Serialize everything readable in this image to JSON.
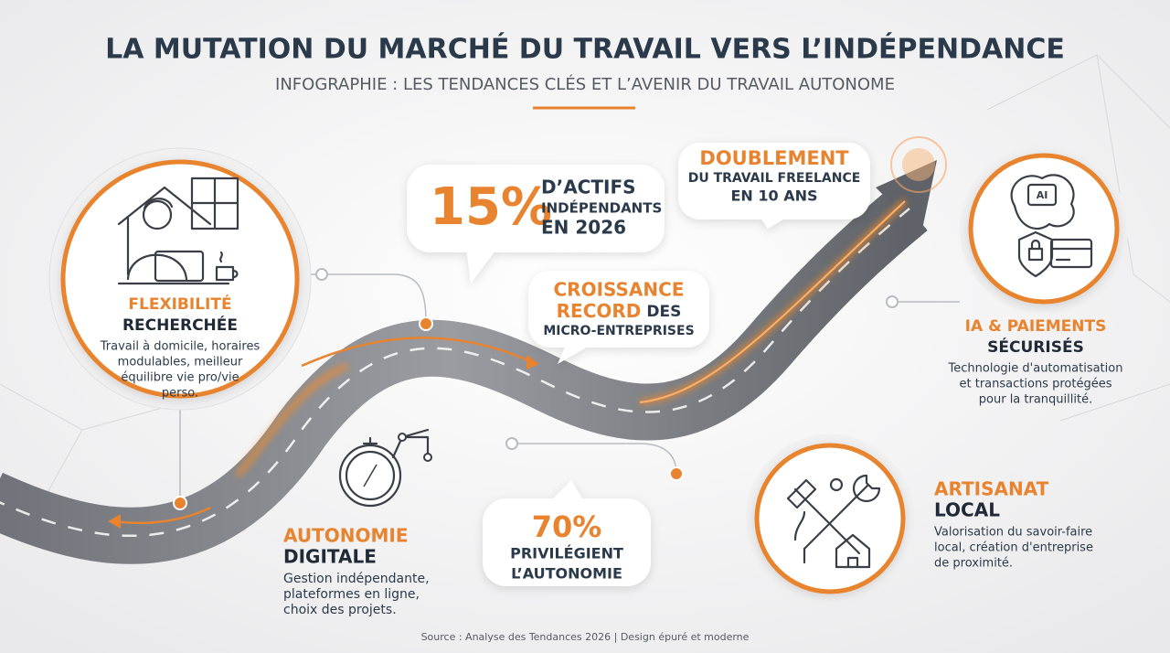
{
  "header": {
    "title": "LA MUTATION DU MARCHÉ DU TRAVAIL VERS L’INDÉPENDANCE",
    "subtitle": "INFOGRAPHIE : LES TENDANCES CLÉS ET L’AVENIR DU TRAVAIL AUTONOME"
  },
  "callouts": {
    "independants": {
      "stat": "15%",
      "lines": [
        "D’ACTIFS",
        "INDÉPENDANTS",
        "EN 2026"
      ]
    },
    "doublement": {
      "highlight": "DOUBLEMENT",
      "lines": [
        "DU TRAVAIL FREELANCE",
        "EN 10 ANS"
      ]
    },
    "croissance": {
      "highlight": [
        "CROISSANCE",
        "RECORD"
      ],
      "suffix": "DES",
      "line": "MICRO-ENTREPRISES"
    },
    "autonomie": {
      "stat": "70%",
      "lines": [
        "PRIVILÉGIENT",
        "L’AUTONOMIE"
      ]
    }
  },
  "sections": [
    {
      "accent": "FLEXIBILITÉ",
      "title": "RECHERCHÉE",
      "description": [
        "Travail à domicile, horaires",
        "modulables, meilleur",
        "équilibre vie pro/vie",
        "perso."
      ]
    },
    {
      "accent": "AUTONOMIE",
      "title": "DIGITALE",
      "description": [
        "Gestion indépendante,",
        "plateformes en ligne,",
        "choix des projets."
      ]
    },
    {
      "accent": "IA & PAIEMENTS",
      "title": "SÉCURISÉS",
      "description": [
        "Technologie d'automatisation",
        "et transactions protégées",
        "pour la tranquillité."
      ]
    },
    {
      "accent": "ARTISANAT",
      "title": "LOCAL",
      "description": [
        "Valorisation du savoir-faire",
        "local, création d'entreprise",
        "de proximité."
      ]
    }
  ],
  "footer": {
    "source": "Source : Analyse des Tendances 2026 | Design épuré et moderne"
  }
}
